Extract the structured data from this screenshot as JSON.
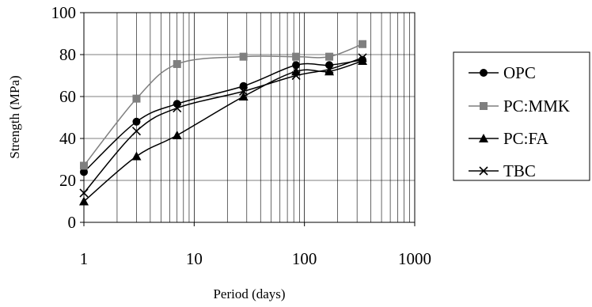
{
  "chart_data": {
    "type": "line",
    "title": "",
    "xlabel": "Period (days)",
    "ylabel": "Strength (MPa)",
    "xscale": "log",
    "xlim": [
      1,
      1000
    ],
    "ylim": [
      0,
      100
    ],
    "xticks": [
      1,
      10,
      100,
      1000
    ],
    "xtick_labels": [
      "1",
      "10",
      "100",
      "1000"
    ],
    "yticks": [
      0,
      20,
      40,
      60,
      80,
      100
    ],
    "ytick_labels": [
      "0",
      "20",
      "40",
      "60",
      "80",
      "100"
    ],
    "grid": "major and minor vertical, major horizontal",
    "legend_position": "right",
    "x": [
      1,
      3,
      7,
      28,
      84,
      168,
      336
    ],
    "series": [
      {
        "name": "OPC",
        "values": [
          24,
          48,
          56.5,
          65,
          75,
          75,
          77.5
        ],
        "color": "#000000",
        "marker": "circle"
      },
      {
        "name": "PC:MMK",
        "values": [
          27,
          59,
          75.5,
          79,
          79,
          79,
          85
        ],
        "color": "#7f7f7f",
        "marker": "square"
      },
      {
        "name": "PC:FA",
        "values": [
          10,
          31.5,
          41.5,
          60,
          72,
          72,
          77
        ],
        "color": "#000000",
        "marker": "triangle"
      },
      {
        "name": "TBC",
        "values": [
          14,
          43.5,
          54.5,
          62.5,
          70,
          73,
          78.5
        ],
        "color": "#000000",
        "marker": "x"
      }
    ]
  }
}
